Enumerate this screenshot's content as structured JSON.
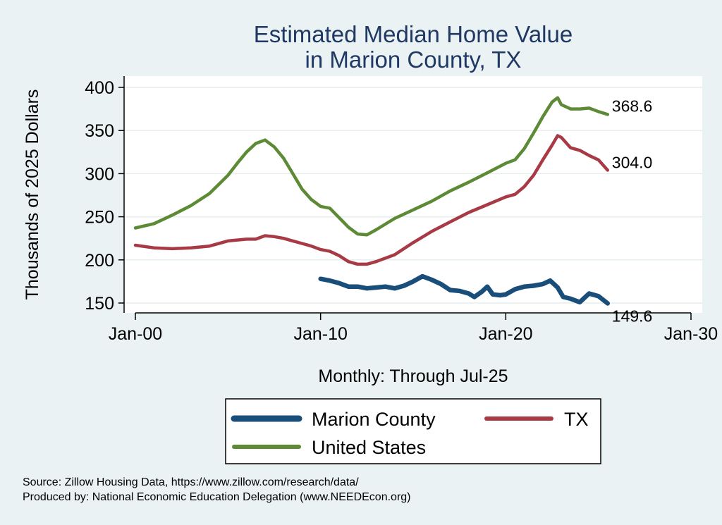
{
  "chart_data": {
    "type": "line",
    "title_lines": [
      "Estimated Median Home Value",
      "in Marion County, TX"
    ],
    "xlabel": "Monthly: Through Jul-25",
    "ylabel": "Thousands of 2025 Dollars",
    "x_ticks": [
      "Jan-00",
      "Jan-10",
      "Jan-20",
      "Jan-30"
    ],
    "x_tick_years": [
      2000,
      2010,
      2020,
      2030
    ],
    "xlim": [
      2000,
      2030
    ],
    "y_ticks": [
      150,
      200,
      250,
      300,
      350,
      400
    ],
    "ylim": [
      142,
      410
    ],
    "grid": true,
    "legend_position": "bottom",
    "series": [
      {
        "name": "Marion County",
        "color": "#1a4e7a",
        "end_label": "149.6",
        "points": [
          [
            2010.0,
            178
          ],
          [
            2010.5,
            176
          ],
          [
            2011.0,
            173
          ],
          [
            2011.5,
            169
          ],
          [
            2012.0,
            169
          ],
          [
            2012.5,
            167
          ],
          [
            2013.0,
            168
          ],
          [
            2013.5,
            169
          ],
          [
            2014.0,
            167
          ],
          [
            2014.5,
            170
          ],
          [
            2015.0,
            175
          ],
          [
            2015.5,
            181
          ],
          [
            2016.0,
            177
          ],
          [
            2016.5,
            172
          ],
          [
            2017.0,
            165
          ],
          [
            2017.5,
            164
          ],
          [
            2018.0,
            161
          ],
          [
            2018.3,
            157
          ],
          [
            2018.7,
            163
          ],
          [
            2019.0,
            169
          ],
          [
            2019.3,
            160
          ],
          [
            2019.7,
            159
          ],
          [
            2020.0,
            160
          ],
          [
            2020.5,
            166
          ],
          [
            2021.0,
            169
          ],
          [
            2021.5,
            170
          ],
          [
            2022.0,
            172
          ],
          [
            2022.4,
            176
          ],
          [
            2022.8,
            168
          ],
          [
            2023.1,
            157
          ],
          [
            2023.5,
            155
          ],
          [
            2024.0,
            151
          ],
          [
            2024.5,
            161
          ],
          [
            2025.0,
            158
          ],
          [
            2025.5,
            149.6
          ]
        ]
      },
      {
        "name": "TX",
        "color": "#a83a46",
        "end_label": "304.0",
        "points": [
          [
            2000.0,
            217
          ],
          [
            2001.0,
            214
          ],
          [
            2002.0,
            213
          ],
          [
            2003.0,
            214
          ],
          [
            2004.0,
            216
          ],
          [
            2005.0,
            222
          ],
          [
            2006.0,
            224
          ],
          [
            2006.5,
            224
          ],
          [
            2007.0,
            228
          ],
          [
            2007.5,
            227
          ],
          [
            2008.0,
            225
          ],
          [
            2008.5,
            222
          ],
          [
            2009.0,
            219
          ],
          [
            2009.5,
            216
          ],
          [
            2010.0,
            212
          ],
          [
            2010.5,
            210
          ],
          [
            2011.0,
            205
          ],
          [
            2011.5,
            198
          ],
          [
            2012.0,
            195
          ],
          [
            2012.5,
            195
          ],
          [
            2013.0,
            198
          ],
          [
            2014.0,
            206
          ],
          [
            2015.0,
            220
          ],
          [
            2016.0,
            233
          ],
          [
            2017.0,
            244
          ],
          [
            2018.0,
            255
          ],
          [
            2019.0,
            264
          ],
          [
            2020.0,
            273
          ],
          [
            2020.5,
            276
          ],
          [
            2021.0,
            285
          ],
          [
            2021.5,
            298
          ],
          [
            2022.0,
            316
          ],
          [
            2022.5,
            333
          ],
          [
            2022.8,
            344
          ],
          [
            2023.0,
            342
          ],
          [
            2023.5,
            330
          ],
          [
            2024.0,
            327
          ],
          [
            2024.5,
            321
          ],
          [
            2025.0,
            316
          ],
          [
            2025.5,
            304.0
          ]
        ]
      },
      {
        "name": "United States",
        "color": "#5c8a35",
        "end_label": "368.6",
        "points": [
          [
            2000.0,
            237
          ],
          [
            2001.0,
            242
          ],
          [
            2002.0,
            252
          ],
          [
            2003.0,
            263
          ],
          [
            2004.0,
            277
          ],
          [
            2005.0,
            298
          ],
          [
            2005.5,
            312
          ],
          [
            2006.0,
            325
          ],
          [
            2006.5,
            335
          ],
          [
            2007.0,
            339
          ],
          [
            2007.5,
            331
          ],
          [
            2008.0,
            318
          ],
          [
            2008.5,
            300
          ],
          [
            2009.0,
            282
          ],
          [
            2009.5,
            270
          ],
          [
            2010.0,
            262
          ],
          [
            2010.5,
            260
          ],
          [
            2011.0,
            249
          ],
          [
            2011.5,
            238
          ],
          [
            2012.0,
            230
          ],
          [
            2012.5,
            229
          ],
          [
            2013.0,
            235
          ],
          [
            2014.0,
            248
          ],
          [
            2015.0,
            258
          ],
          [
            2016.0,
            268
          ],
          [
            2017.0,
            280
          ],
          [
            2018.0,
            290
          ],
          [
            2019.0,
            301
          ],
          [
            2020.0,
            312
          ],
          [
            2020.5,
            316
          ],
          [
            2021.0,
            329
          ],
          [
            2021.5,
            347
          ],
          [
            2022.0,
            366
          ],
          [
            2022.5,
            383
          ],
          [
            2022.8,
            388
          ],
          [
            2023.0,
            380
          ],
          [
            2023.5,
            375
          ],
          [
            2024.0,
            375
          ],
          [
            2024.5,
            376
          ],
          [
            2025.0,
            372
          ],
          [
            2025.5,
            368.6
          ]
        ]
      }
    ]
  },
  "source_line1": "Source: Zillow Housing Data, https://www.zillow.com/research/data/",
  "source_line2": "Produced by: National Economic Education Delegation (www.NEEDEcon.org)"
}
